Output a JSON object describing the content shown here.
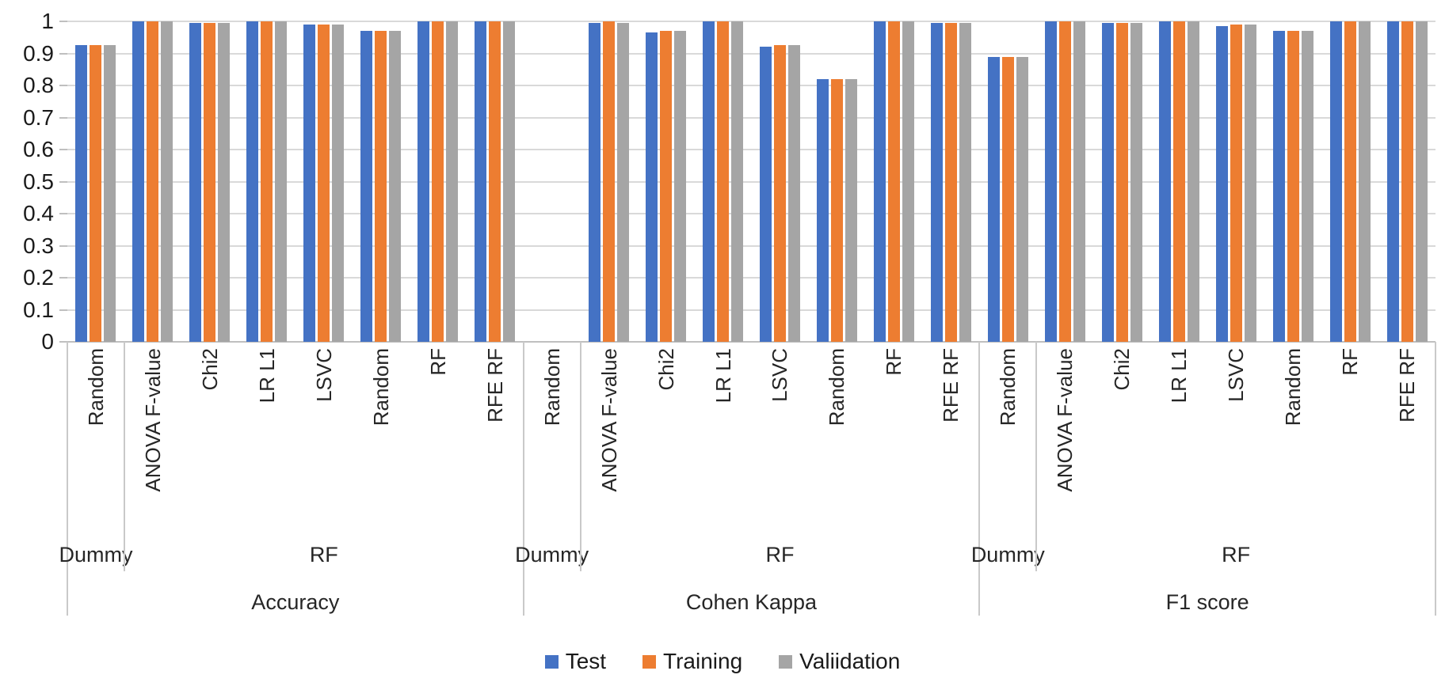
{
  "chart_data": {
    "type": "bar",
    "title": "",
    "xlabel": "",
    "ylabel": "",
    "ylim": [
      0,
      1
    ],
    "ytick_step": 0.1,
    "ytick_labels": [
      "1",
      "0.9",
      "0.8",
      "0.7",
      "0.6",
      "0.5",
      "0.4",
      "0.3",
      "0.2",
      "0.1",
      "0"
    ],
    "grid": true,
    "legend_position": "bottom",
    "series": [
      {
        "name": "Test",
        "color": "#4472C4"
      },
      {
        "name": "Training",
        "color": "#ED7D31"
      },
      {
        "name": "Valiidation",
        "color": "#A5A5A5"
      }
    ],
    "sections": [
      {
        "label": "Accuracy",
        "groups": [
          {
            "label": "Dummy",
            "items": [
              {
                "label": "Random",
                "values": [
                  0.925,
                  0.925,
                  0.925
                ]
              }
            ]
          },
          {
            "label": "RF",
            "items": [
              {
                "label": "ANOVA F-value",
                "values": [
                  1,
                  1,
                  1
                ]
              },
              {
                "label": "Chi2",
                "values": [
                  0.995,
                  0.995,
                  0.995
                ]
              },
              {
                "label": "LR L1",
                "values": [
                  1,
                  1,
                  1
                ]
              },
              {
                "label": "LSVC",
                "values": [
                  0.99,
                  0.99,
                  0.99
                ]
              },
              {
                "label": "Random",
                "values": [
                  0.97,
                  0.97,
                  0.97
                ]
              },
              {
                "label": "RF",
                "values": [
                  1,
                  1,
                  1
                ]
              },
              {
                "label": "RFE RF",
                "values": [
                  1,
                  1,
                  1
                ]
              }
            ]
          }
        ]
      },
      {
        "label": "Cohen Kappa",
        "groups": [
          {
            "label": "Dummy",
            "items": [
              {
                "label": "Random",
                "values": [
                  0,
                  0,
                  0
                ]
              }
            ]
          },
          {
            "label": "RF",
            "items": [
              {
                "label": "ANOVA F-value",
                "values": [
                  0.995,
                  1,
                  0.995
                ]
              },
              {
                "label": "Chi2",
                "values": [
                  0.965,
                  0.97,
                  0.97
                ]
              },
              {
                "label": "LR L1",
                "values": [
                  1,
                  1,
                  1
                ]
              },
              {
                "label": "LSVC",
                "values": [
                  0.92,
                  0.925,
                  0.925
                ]
              },
              {
                "label": "Random",
                "values": [
                  0.82,
                  0.82,
                  0.82
                ]
              },
              {
                "label": "RF",
                "values": [
                  1,
                  1,
                  1
                ]
              },
              {
                "label": "RFE RF",
                "values": [
                  0.995,
                  0.995,
                  0.995
                ]
              }
            ]
          }
        ]
      },
      {
        "label": "F1 score",
        "groups": [
          {
            "label": "Dummy",
            "items": [
              {
                "label": "Random",
                "values": [
                  0.89,
                  0.89,
                  0.89
                ]
              }
            ]
          },
          {
            "label": "RF",
            "items": [
              {
                "label": "ANOVA F-value",
                "values": [
                  1,
                  1,
                  1
                ]
              },
              {
                "label": "Chi2",
                "values": [
                  0.995,
                  0.995,
                  0.995
                ]
              },
              {
                "label": "LR L1",
                "values": [
                  1,
                  1,
                  1
                ]
              },
              {
                "label": "LSVC",
                "values": [
                  0.985,
                  0.99,
                  0.99
                ]
              },
              {
                "label": "Random",
                "values": [
                  0.97,
                  0.97,
                  0.97
                ]
              },
              {
                "label": "RF",
                "values": [
                  1,
                  1,
                  1
                ]
              },
              {
                "label": "RFE RF",
                "values": [
                  1,
                  1,
                  1
                ]
              }
            ]
          }
        ]
      }
    ]
  },
  "colors": {
    "gridline": "#D9D9D9",
    "axis": "#BFBFBF",
    "text": "#262626"
  }
}
